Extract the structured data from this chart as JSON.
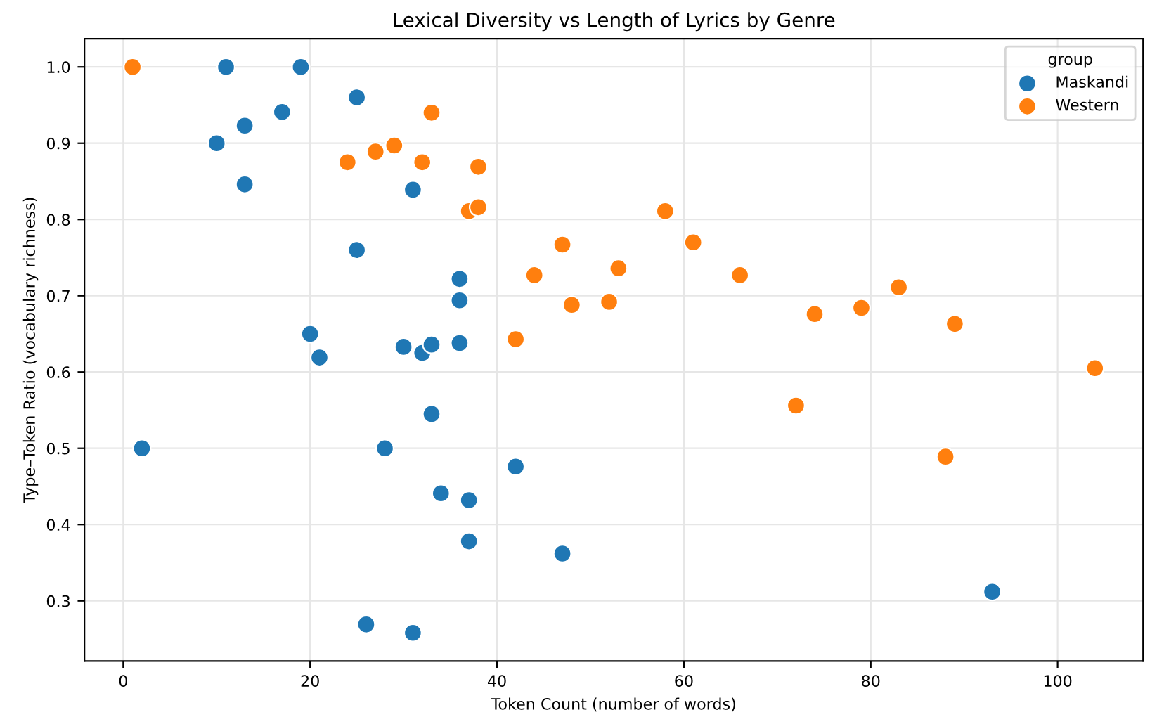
{
  "chart_data": {
    "type": "scatter",
    "title": "Lexical Diversity vs Length of Lyrics by Genre",
    "xlabel": "Token Count (number of words)",
    "ylabel": "Type–Token Ratio (vocabulary richness)",
    "legend_title": "group",
    "legend": "top right",
    "grid": true,
    "marker": "circle",
    "xlim": [
      -4.15,
      109.15
    ],
    "xticks": [
      0,
      20,
      40,
      60,
      80,
      100
    ],
    "ylim": [
      0.221,
      1.037
    ],
    "yticks": [
      {
        "value": 0.3,
        "label": "0.3"
      },
      {
        "value": 0.4,
        "label": "0.4"
      },
      {
        "value": 0.5,
        "label": "0.5"
      },
      {
        "value": 0.6,
        "label": "0.6"
      },
      {
        "value": 0.7,
        "label": "0.7"
      },
      {
        "value": 0.8,
        "label": "0.8"
      },
      {
        "value": 0.9,
        "label": "0.9"
      },
      {
        "value": 1.0,
        "label": "1.0"
      }
    ],
    "series": [
      {
        "name": "Maskandi",
        "color": "#1f77b4",
        "x": [
          2,
          10,
          11,
          13,
          13,
          17,
          19,
          20,
          21,
          25,
          25,
          26,
          28,
          30,
          31,
          31,
          32,
          33,
          33,
          34,
          36,
          36,
          36,
          37,
          37,
          42,
          47,
          93
        ],
        "values": [
          0.5,
          0.9,
          1.0,
          0.923,
          0.846,
          0.941,
          1.0,
          0.65,
          0.619,
          0.96,
          0.76,
          0.269,
          0.5,
          0.633,
          0.839,
          0.258,
          0.625,
          0.636,
          0.545,
          0.441,
          0.722,
          0.694,
          0.638,
          0.432,
          0.378,
          0.476,
          0.362,
          0.312
        ]
      },
      {
        "name": "Western",
        "color": "#ff7f0e",
        "x": [
          1,
          24,
          27,
          29,
          32,
          33,
          37,
          38,
          38,
          42,
          44,
          47,
          48,
          52,
          53,
          58,
          61,
          66,
          72,
          74,
          79,
          83,
          88,
          89,
          104
        ],
        "values": [
          1.0,
          0.875,
          0.889,
          0.897,
          0.875,
          0.94,
          0.811,
          0.816,
          0.869,
          0.643,
          0.727,
          0.767,
          0.688,
          0.692,
          0.736,
          0.811,
          0.77,
          0.727,
          0.556,
          0.676,
          0.684,
          0.711,
          0.489,
          0.663,
          0.605
        ]
      }
    ]
  }
}
